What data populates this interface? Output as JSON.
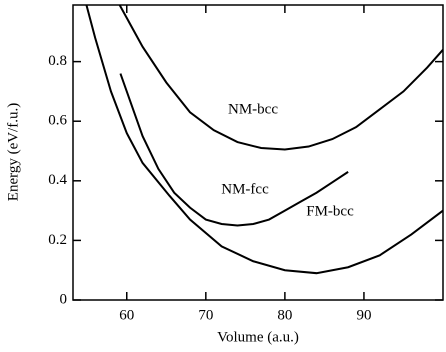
{
  "chart_data": {
    "type": "line",
    "xlabel": "Volume (a.u.)",
    "ylabel": "Energy (eV/f.u.)",
    "xlim": [
      53.2,
      100
    ],
    "xticks": [
      60,
      70,
      80,
      90
    ],
    "ylim": [
      0,
      0.99
    ],
    "yticks": [
      0,
      0.2,
      0.4,
      0.6,
      0.8
    ],
    "series": [
      {
        "name": "NM-bcc",
        "color": "#000000",
        "x": [
          59.1,
          62,
          65,
          68,
          71,
          74,
          77,
          80,
          83,
          86,
          89,
          92,
          95,
          98,
          100
        ],
        "values": [
          0.99,
          0.85,
          0.73,
          0.63,
          0.57,
          0.53,
          0.51,
          0.505,
          0.515,
          0.54,
          0.58,
          0.64,
          0.7,
          0.78,
          0.84
        ]
      },
      {
        "name": "NM-fcc",
        "color": "#000000",
        "x": [
          59.2,
          60,
          62,
          64,
          66,
          68,
          70,
          72,
          74,
          76,
          78,
          80,
          82,
          84,
          86,
          88
        ],
        "values": [
          0.76,
          0.7,
          0.55,
          0.44,
          0.36,
          0.31,
          0.27,
          0.255,
          0.25,
          0.255,
          0.27,
          0.3,
          0.33,
          0.36,
          0.395,
          0.43
        ]
      },
      {
        "name": "FM-bcc",
        "color": "#000000",
        "x": [
          54.9,
          56,
          58,
          60,
          62,
          65.4,
          68,
          72,
          76,
          80,
          84,
          88,
          92,
          96,
          100
        ],
        "values": [
          0.99,
          0.88,
          0.7,
          0.56,
          0.46,
          0.35,
          0.27,
          0.18,
          0.13,
          0.1,
          0.09,
          0.11,
          0.15,
          0.22,
          0.3
        ]
      }
    ]
  }
}
